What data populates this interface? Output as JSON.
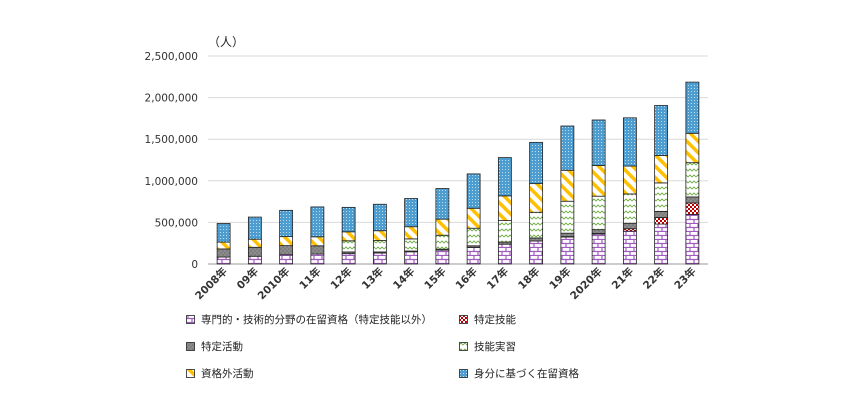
{
  "chart_data": {
    "type": "bar",
    "stacked": true,
    "unit_label": "（人）",
    "categories": [
      "2008年",
      "09年",
      "2010年",
      "11年",
      "12年",
      "13年",
      "14年",
      "15年",
      "16年",
      "17年",
      "18年",
      "19年",
      "2020年",
      "21年",
      "22年",
      "23年"
    ],
    "ylim": [
      0,
      2500000
    ],
    "yticks": [
      0,
      500000,
      1000000,
      1500000,
      2000000,
      2500000
    ],
    "ytick_labels": [
      "0",
      "500,000",
      "1,000,000",
      "1,500,000",
      "2,000,000",
      "2,500,000"
    ],
    "grid": true,
    "legend_position": "bottom",
    "series": [
      {
        "name": "専門的・技術的分野の在留資格（特定技能以外）",
        "pattern": "brick",
        "color": "#b07cc6",
        "values": [
          84000,
          93000,
          111000,
          119000,
          124000,
          132000,
          147000,
          167000,
          200000,
          238000,
          277000,
          329000,
          360000,
          395000,
          480000,
          596000
        ]
      },
      {
        "name": "特定技能",
        "pattern": "dots-red",
        "color": "#c00000",
        "values": [
          0,
          0,
          0,
          0,
          0,
          0,
          0,
          0,
          0,
          0,
          0,
          500,
          7000,
          29000,
          79000,
          138000
        ]
      },
      {
        "name": "特定活動",
        "pattern": "solid-gray",
        "color": "#8c8c8c",
        "values": [
          97000,
          108000,
          110000,
          100000,
          21000,
          13000,
          9000,
          11000,
          19000,
          26000,
          36000,
          41000,
          46000,
          66000,
          73000,
          72000
        ]
      },
      {
        "name": "技能実習",
        "pattern": "wave-green",
        "color": "#70ad47",
        "values": [
          0,
          0,
          0,
          0,
          134000,
          137000,
          146000,
          168000,
          211000,
          258000,
          309000,
          384000,
          402000,
          352000,
          343000,
          412000
        ]
      },
      {
        "name": "資格外活動",
        "pattern": "diag-orange",
        "color": "#ffc000",
        "values": [
          82000,
          97000,
          108000,
          108000,
          108000,
          118000,
          146000,
          193000,
          240000,
          297000,
          344000,
          372000,
          370000,
          335000,
          330000,
          353000
        ]
      },
      {
        "name": "身分に基づく在留資格",
        "pattern": "dots-blue",
        "color": "#4e9dd0",
        "values": [
          224000,
          266000,
          316000,
          359000,
          294000,
          318000,
          339000,
          368000,
          413000,
          460000,
          496000,
          532000,
          546000,
          580000,
          600000,
          615000
        ]
      }
    ]
  }
}
